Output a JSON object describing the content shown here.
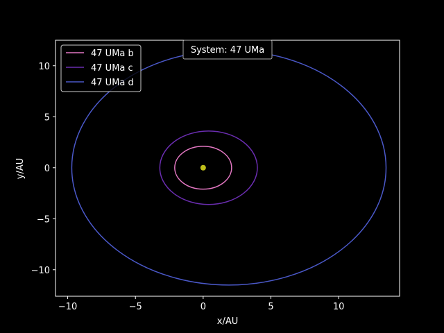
{
  "chart_data": {
    "type": "line",
    "title": "System: 47 UMa",
    "xlabel": "x/AU",
    "ylabel": "y/AU",
    "xlim": [
      -10.9,
      14.5
    ],
    "ylim": [
      -12.6,
      12.5
    ],
    "x_ticks": [
      -10,
      -5,
      0,
      5,
      10
    ],
    "y_ticks": [
      -10,
      -5,
      0,
      5,
      10
    ],
    "x_tick_labels": [
      "−10",
      "−5",
      "0",
      "5",
      "10"
    ],
    "y_tick_labels": [
      "−10",
      "−5",
      "0",
      "5",
      "10"
    ],
    "grid": false,
    "legend_position": "upper-left",
    "background": "#000000",
    "foreground": "#ffffff",
    "star": {
      "x": 0,
      "y": 0,
      "color": "#bfbf1a"
    },
    "series": [
      {
        "name": "47 UMa b",
        "color": "#e377c2",
        "orbit": {
          "center_x": 0.0,
          "center_y": 0.0,
          "semi_major_x": 2.1,
          "semi_minor_y": 2.1
        }
      },
      {
        "name": "47 UMa c",
        "color": "#6a2db0",
        "orbit": {
          "center_x": 0.4,
          "center_y": 0.0,
          "semi_major_x": 3.6,
          "semi_minor_y": 3.6
        }
      },
      {
        "name": "47 UMa d",
        "color": "#4a58c8",
        "orbit": {
          "center_x": 1.9,
          "center_y": 0.0,
          "semi_major_x": 11.6,
          "semi_minor_y": 11.5
        }
      }
    ]
  }
}
